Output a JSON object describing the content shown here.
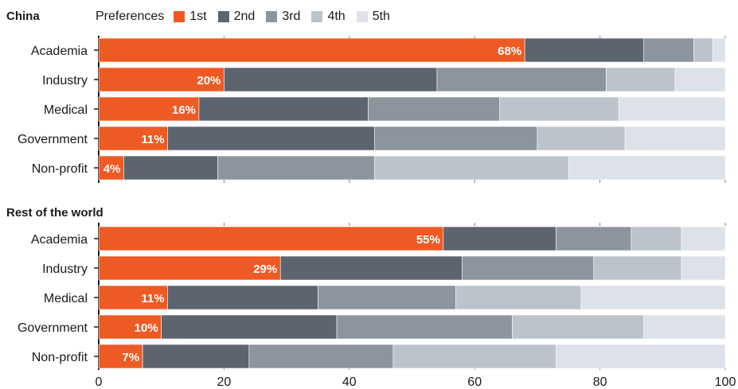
{
  "legend": {
    "title": "Preferences",
    "items": [
      {
        "label": "1st",
        "color": "#ee5a24"
      },
      {
        "label": "2nd",
        "color": "#5c6470"
      },
      {
        "label": "3rd",
        "color": "#8c959e"
      },
      {
        "label": "4th",
        "color": "#bcc3cb"
      },
      {
        "label": "5th",
        "color": "#dde2e8"
      }
    ]
  },
  "chart_data": [
    {
      "type": "bar",
      "orientation": "horizontal",
      "stacked": true,
      "title": "China",
      "categories": [
        "Academia",
        "Industry",
        "Medical",
        "Government",
        "Non-profit"
      ],
      "series": [
        {
          "name": "1st",
          "values": [
            68,
            20,
            16,
            11,
            4
          ]
        },
        {
          "name": "2nd",
          "values": [
            19,
            34,
            27,
            33,
            15
          ]
        },
        {
          "name": "3rd",
          "values": [
            8,
            27,
            21,
            26,
            25
          ]
        },
        {
          "name": "4th",
          "values": [
            3,
            11,
            19,
            14,
            31
          ]
        },
        {
          "name": "5th",
          "values": [
            2,
            8,
            17,
            16,
            25
          ]
        }
      ],
      "data_labels": [
        "68%",
        "20%",
        "16%",
        "11%",
        "4%"
      ],
      "xlim": [
        0,
        100
      ]
    },
    {
      "type": "bar",
      "orientation": "horizontal",
      "stacked": true,
      "title": "Rest of the world",
      "categories": [
        "Academia",
        "Industry",
        "Medical",
        "Government",
        "Non-profit"
      ],
      "series": [
        {
          "name": "1st",
          "values": [
            55,
            29,
            11,
            10,
            7
          ]
        },
        {
          "name": "2nd",
          "values": [
            18,
            29,
            24,
            28,
            17
          ]
        },
        {
          "name": "3rd",
          "values": [
            12,
            21,
            22,
            28,
            23
          ]
        },
        {
          "name": "4th",
          "values": [
            8,
            14,
            20,
            21,
            26
          ]
        },
        {
          "name": "5th",
          "values": [
            7,
            7,
            23,
            13,
            27
          ]
        }
      ],
      "data_labels": [
        "55%",
        "29%",
        "11%",
        "10%",
        "7%"
      ],
      "xlim": [
        0,
        100
      ],
      "xticks": [
        "0",
        "20",
        "40",
        "60",
        "80",
        "100"
      ]
    }
  ]
}
